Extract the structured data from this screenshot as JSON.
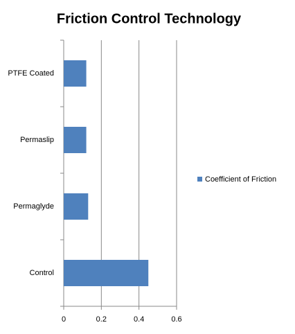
{
  "chart_data": {
    "type": "hbar",
    "title": "Friction Control Technology",
    "categories": [
      "PTFE Coated",
      "Permaslip",
      "Permaglyde",
      "Control"
    ],
    "series": [
      {
        "name": "Coefficient of Friction",
        "color": "#4f81bd",
        "values": [
          0.12,
          0.12,
          0.13,
          0.45
        ]
      }
    ],
    "xlim": [
      0,
      0.6
    ],
    "xticks": [
      0,
      0.2,
      0.4,
      0.6
    ],
    "grid": true,
    "legend": "right"
  }
}
